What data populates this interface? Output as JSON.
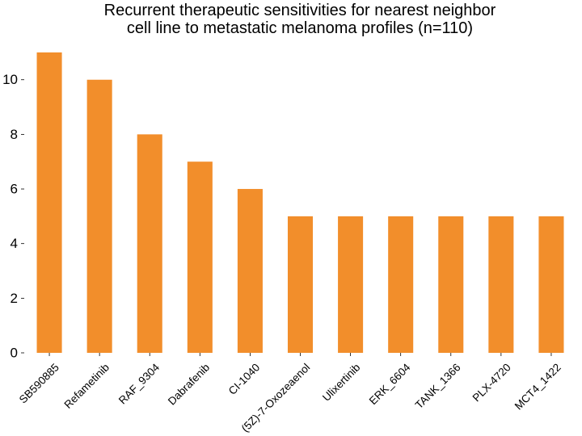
{
  "chart_data": {
    "type": "bar",
    "title_lines": [
      "Recurrent therapeutic sensitivities for nearest neighbor",
      "cell line to metastatic melanoma profiles (n=110)"
    ],
    "xlabel": "",
    "ylabel": "",
    "categories": [
      "SB590885",
      "Refametinib",
      "RAF_9304",
      "Dabrafenib",
      "CI-1040",
      "(5Z)-7-Oxozeaenol",
      "Ulixertinib",
      "ERK_6604",
      "TANK_1366",
      "PLX-4720",
      "MCT4_1422"
    ],
    "values": [
      11,
      10,
      8,
      7,
      6,
      5,
      5,
      5,
      5,
      5,
      5
    ],
    "ylim": [
      0,
      11.5
    ],
    "yticks": [
      0,
      2,
      4,
      6,
      8,
      10
    ],
    "bar_color": "#f28e2b",
    "grid": false,
    "legend": "none"
  }
}
